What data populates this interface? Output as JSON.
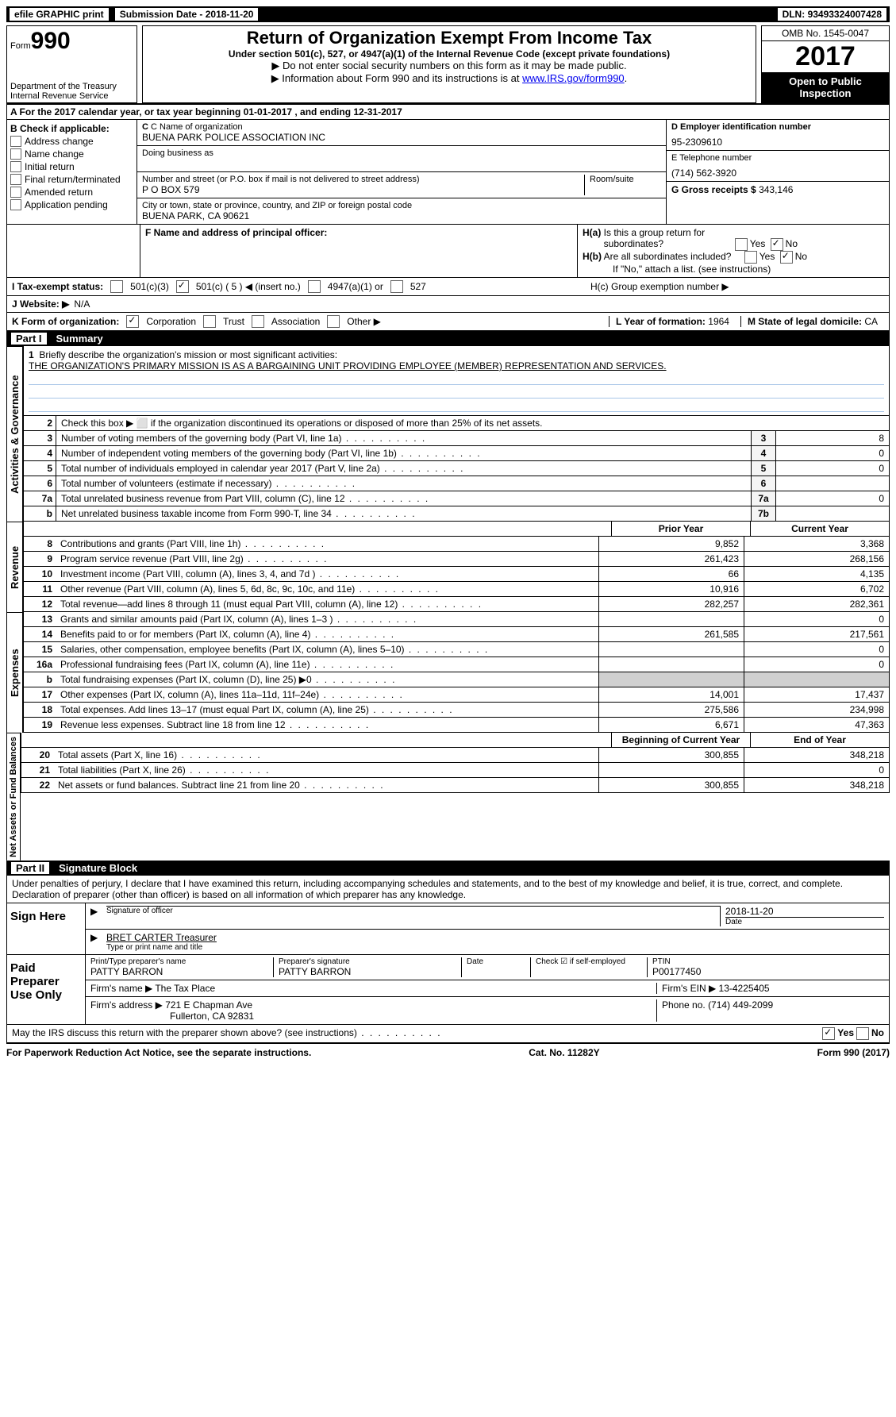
{
  "top": {
    "efile": "efile GRAPHIC print",
    "subdate_lbl": "Submission Date - ",
    "subdate": "2018-11-20",
    "dln_lbl": "DLN: ",
    "dln": "93493324007428"
  },
  "header": {
    "form_prefix": "Form",
    "form_no": "990",
    "dept1": "Department of the Treasury",
    "dept2": "Internal Revenue Service",
    "title": "Return of Organization Exempt From Income Tax",
    "sub1": "Under section 501(c), 527, or 4947(a)(1) of the Internal Revenue Code (except private foundations)",
    "sub2": "▶ Do not enter social security numbers on this form as it may be made public.",
    "sub3_pre": "▶ Information about Form 990 and its instructions is at ",
    "sub3_link": "www.IRS.gov/form990",
    "omb": "OMB No. 1545-0047",
    "year": "2017",
    "open": "Open to Public Inspection"
  },
  "a_line": "A  For the 2017 calendar year, or tax year beginning 01-01-2017   , and ending 12-31-2017",
  "b": {
    "title": "B Check if applicable:",
    "items": [
      "Address change",
      "Name change",
      "Initial return",
      "Final return/terminated",
      "Amended return",
      "Application pending"
    ]
  },
  "c": {
    "name_lbl": "C Name of organization",
    "name": "BUENA PARK POLICE ASSOCIATION INC",
    "dba_lbl": "Doing business as",
    "addr_lbl": "Number and street (or P.O. box if mail is not delivered to street address)",
    "room_lbl": "Room/suite",
    "addr": "P O BOX 579",
    "city_lbl": "City or town, state or province, country, and ZIP or foreign postal code",
    "city": "BUENA PARK, CA  90621"
  },
  "d": {
    "ein_lbl": "D Employer identification number",
    "ein": "95-2309610",
    "tel_lbl": "E Telephone number",
    "tel": "(714) 562-3920",
    "gross_lbl": "G Gross receipts $ ",
    "gross": "343,146"
  },
  "f": {
    "lbl": "F Name and address of principal officer:"
  },
  "h": {
    "ha": "H(a)  Is this a group return for subordinates?",
    "hb": "H(b)  Are all subordinates included?",
    "hb_note": "If \"No,\" attach a list. (see instructions)",
    "hc": "H(c)  Group exemption number ▶",
    "yes": "Yes",
    "no": "No"
  },
  "i": {
    "lbl": "I  Tax-exempt status:",
    "o1": "501(c)(3)",
    "o2": "501(c) ( 5 ) ◀ (insert no.)",
    "o3": "4947(a)(1) or",
    "o4": "527"
  },
  "j": {
    "lbl": "J  Website: ▶",
    "val": "N/A"
  },
  "k": {
    "lbl": "K Form of organization:",
    "o1": "Corporation",
    "o2": "Trust",
    "o3": "Association",
    "o4": "Other ▶"
  },
  "l": {
    "lbl": "L Year of formation: ",
    "val": "1964"
  },
  "m": {
    "lbl": "M State of legal domicile: ",
    "val": "CA"
  },
  "part1": {
    "num": "Part I",
    "title": "Summary"
  },
  "vlabels": {
    "ag": "Activities & Governance",
    "rev": "Revenue",
    "exp": "Expenses",
    "net": "Net Assets or Fund Balances"
  },
  "s1": {
    "l1": "Briefly describe the organization's mission or most significant activities:",
    "mission": "THE ORGANIZATION'S PRIMARY MISSION IS AS A BARGAINING UNIT PROVIDING EMPLOYEE (MEMBER) REPRESENTATION AND SERVICES.",
    "l2": "Check this box ▶ ⬜  if the organization discontinued its operations or disposed of more than 25% of its net assets.",
    "lines": [
      {
        "n": "3",
        "d": "Number of voting members of the governing body (Part VI, line 1a)",
        "box": "3",
        "v": "8"
      },
      {
        "n": "4",
        "d": "Number of independent voting members of the governing body (Part VI, line 1b)",
        "box": "4",
        "v": "0"
      },
      {
        "n": "5",
        "d": "Total number of individuals employed in calendar year 2017 (Part V, line 2a)",
        "box": "5",
        "v": "0"
      },
      {
        "n": "6",
        "d": "Total number of volunteers (estimate if necessary)",
        "box": "6",
        "v": ""
      },
      {
        "n": "7a",
        "d": "Total unrelated business revenue from Part VIII, column (C), line 12",
        "box": "7a",
        "v": "0"
      },
      {
        "n": "b",
        "d": "Net unrelated business taxable income from Form 990-T, line 34",
        "box": "7b",
        "v": ""
      }
    ]
  },
  "cols": {
    "prior": "Prior Year",
    "current": "Current Year",
    "begin": "Beginning of Current Year",
    "end": "End of Year"
  },
  "rev": [
    {
      "n": "8",
      "d": "Contributions and grants (Part VIII, line 1h)",
      "p": "9,852",
      "c": "3,368"
    },
    {
      "n": "9",
      "d": "Program service revenue (Part VIII, line 2g)",
      "p": "261,423",
      "c": "268,156"
    },
    {
      "n": "10",
      "d": "Investment income (Part VIII, column (A), lines 3, 4, and 7d )",
      "p": "66",
      "c": "4,135"
    },
    {
      "n": "11",
      "d": "Other revenue (Part VIII, column (A), lines 5, 6d, 8c, 9c, 10c, and 11e)",
      "p": "10,916",
      "c": "6,702"
    },
    {
      "n": "12",
      "d": "Total revenue—add lines 8 through 11 (must equal Part VIII, column (A), line 12)",
      "p": "282,257",
      "c": "282,361"
    }
  ],
  "exp": [
    {
      "n": "13",
      "d": "Grants and similar amounts paid (Part IX, column (A), lines 1–3 )",
      "p": "",
      "c": "0"
    },
    {
      "n": "14",
      "d": "Benefits paid to or for members (Part IX, column (A), line 4)",
      "p": "261,585",
      "c": "217,561"
    },
    {
      "n": "15",
      "d": "Salaries, other compensation, employee benefits (Part IX, column (A), lines 5–10)",
      "p": "",
      "c": "0"
    },
    {
      "n": "16a",
      "d": "Professional fundraising fees (Part IX, column (A), line 11e)",
      "p": "",
      "c": "0"
    },
    {
      "n": "b",
      "d": "Total fundraising expenses (Part IX, column (D), line 25) ▶0",
      "p": "gray",
      "c": "gray"
    },
    {
      "n": "17",
      "d": "Other expenses (Part IX, column (A), lines 11a–11d, 11f–24e)",
      "p": "14,001",
      "c": "17,437"
    },
    {
      "n": "18",
      "d": "Total expenses. Add lines 13–17 (must equal Part IX, column (A), line 25)",
      "p": "275,586",
      "c": "234,998"
    },
    {
      "n": "19",
      "d": "Revenue less expenses. Subtract line 18 from line 12",
      "p": "6,671",
      "c": "47,363"
    }
  ],
  "net": [
    {
      "n": "20",
      "d": "Total assets (Part X, line 16)",
      "p": "300,855",
      "c": "348,218"
    },
    {
      "n": "21",
      "d": "Total liabilities (Part X, line 26)",
      "p": "",
      "c": "0"
    },
    {
      "n": "22",
      "d": "Net assets or fund balances. Subtract line 21 from line 20",
      "p": "300,855",
      "c": "348,218"
    }
  ],
  "part2": {
    "num": "Part II",
    "title": "Signature Block"
  },
  "perjury": "Under penalties of perjury, I declare that I have examined this return, including accompanying schedules and statements, and to the best of my knowledge and belief, it is true, correct, and complete. Declaration of preparer (other than officer) is based on all information of which preparer has any knowledge.",
  "sign": {
    "left": "Sign Here",
    "sig_lbl": "Signature of officer",
    "date_lbl": "Date",
    "date": "2018-11-20",
    "name": "BRET CARTER Treasurer",
    "name_lbl": "Type or print name and title"
  },
  "prep": {
    "left": "Paid Preparer Use Only",
    "pname_lbl": "Print/Type preparer's name",
    "pname": "PATTY BARRON",
    "psig_lbl": "Preparer's signature",
    "psig": "PATTY BARRON",
    "pdate_lbl": "Date",
    "self_lbl": "Check ☑ if self-employed",
    "ptin_lbl": "PTIN",
    "ptin": "P00177450",
    "firm_lbl": "Firm's name    ▶ ",
    "firm": "The Tax Place",
    "fein_lbl": "Firm's EIN ▶ ",
    "fein": "13-4225405",
    "faddr_lbl": "Firm's address ▶ ",
    "faddr1": "721 E Chapman Ave",
    "faddr2": "Fullerton, CA  92831",
    "fphone_lbl": "Phone no. ",
    "fphone": "(714) 449-2099"
  },
  "discuss": "May the IRS discuss this return with the preparer shown above? (see instructions)",
  "footer": {
    "l": "For Paperwork Reduction Act Notice, see the separate instructions.",
    "m": "Cat. No. 11282Y",
    "r": "Form 990 (2017)"
  }
}
